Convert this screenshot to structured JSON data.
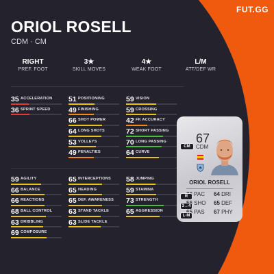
{
  "brand": "FUT.GG",
  "player": {
    "name": "ORIOL ROSELL",
    "positions": "CDM · CM"
  },
  "info": [
    {
      "value": "RIGHT",
      "label": "PREF. FOOT"
    },
    {
      "value": "3★",
      "label": "SKILL MOVES"
    },
    {
      "value": "4★",
      "label": "WEAK FOOT"
    },
    {
      "value": "L/M",
      "label": "ATT/DEF WR"
    }
  ],
  "colors": {
    "background": "#23222d",
    "accent": "#ef5a0e",
    "red": "#e23b2f",
    "orange": "#f08a1c",
    "yellow": "#e8c21a",
    "green": "#4bbb3a"
  },
  "stats_top": {
    "col1": [
      {
        "value": 35,
        "label": "ACCELERATION"
      },
      {
        "value": 36,
        "label": "SPRINT SPEED"
      }
    ],
    "col2": [
      {
        "value": 51,
        "label": "POSITIONING"
      },
      {
        "value": 49,
        "label": "FINISHING"
      },
      {
        "value": 66,
        "label": "SHOT POWER"
      },
      {
        "value": 64,
        "label": "LONG SHOTS"
      },
      {
        "value": 53,
        "label": "VOLLEYS"
      },
      {
        "value": 49,
        "label": "PENALTIES"
      }
    ],
    "col3": [
      {
        "value": 59,
        "label": "VISION"
      },
      {
        "value": 59,
        "label": "CROSSING"
      },
      {
        "value": 42,
        "label": "FK ACCURACY"
      },
      {
        "value": 72,
        "label": "SHORT PASSING"
      },
      {
        "value": 70,
        "label": "LONG PASSING"
      },
      {
        "value": 64,
        "label": "CURVE"
      }
    ]
  },
  "stats_bottom": {
    "col1": [
      {
        "value": 59,
        "label": "AGILITY"
      },
      {
        "value": 66,
        "label": "BALANCE"
      },
      {
        "value": 66,
        "label": "REACTIONS"
      },
      {
        "value": 68,
        "label": "BALL CONTROL"
      },
      {
        "value": 63,
        "label": "DRIBBLING"
      },
      {
        "value": 69,
        "label": "COMPOSURE"
      }
    ],
    "col2": [
      {
        "value": 65,
        "label": "INTERCEPTIONS"
      },
      {
        "value": 65,
        "label": "HEADING"
      },
      {
        "value": 65,
        "label": "DEF. AWARENESS"
      },
      {
        "value": 63,
        "label": "STAND TACKLE"
      },
      {
        "value": 63,
        "label": "SLIDE TACKLE"
      }
    ],
    "col3": [
      {
        "value": 58,
        "label": "JUMPING"
      },
      {
        "value": 59,
        "label": "STAMINA"
      },
      {
        "value": 73,
        "label": "STRENGTH"
      },
      {
        "value": 65,
        "label": "AGGRESSION"
      }
    ]
  },
  "card": {
    "rating": "67",
    "position": "CDM",
    "name": "ORIOL ROSELL",
    "position_badge": "CM",
    "stats": [
      {
        "value": "36",
        "label": "PAC"
      },
      {
        "value": "64",
        "label": "DRI"
      },
      {
        "value": "56",
        "label": "SHO"
      },
      {
        "value": "65",
        "label": "DEF"
      },
      {
        "value": "65",
        "label": "PAS"
      },
      {
        "value": "67",
        "label": "PHY"
      }
    ],
    "badges": [
      "R",
      "3→4",
      "L-M"
    ]
  }
}
